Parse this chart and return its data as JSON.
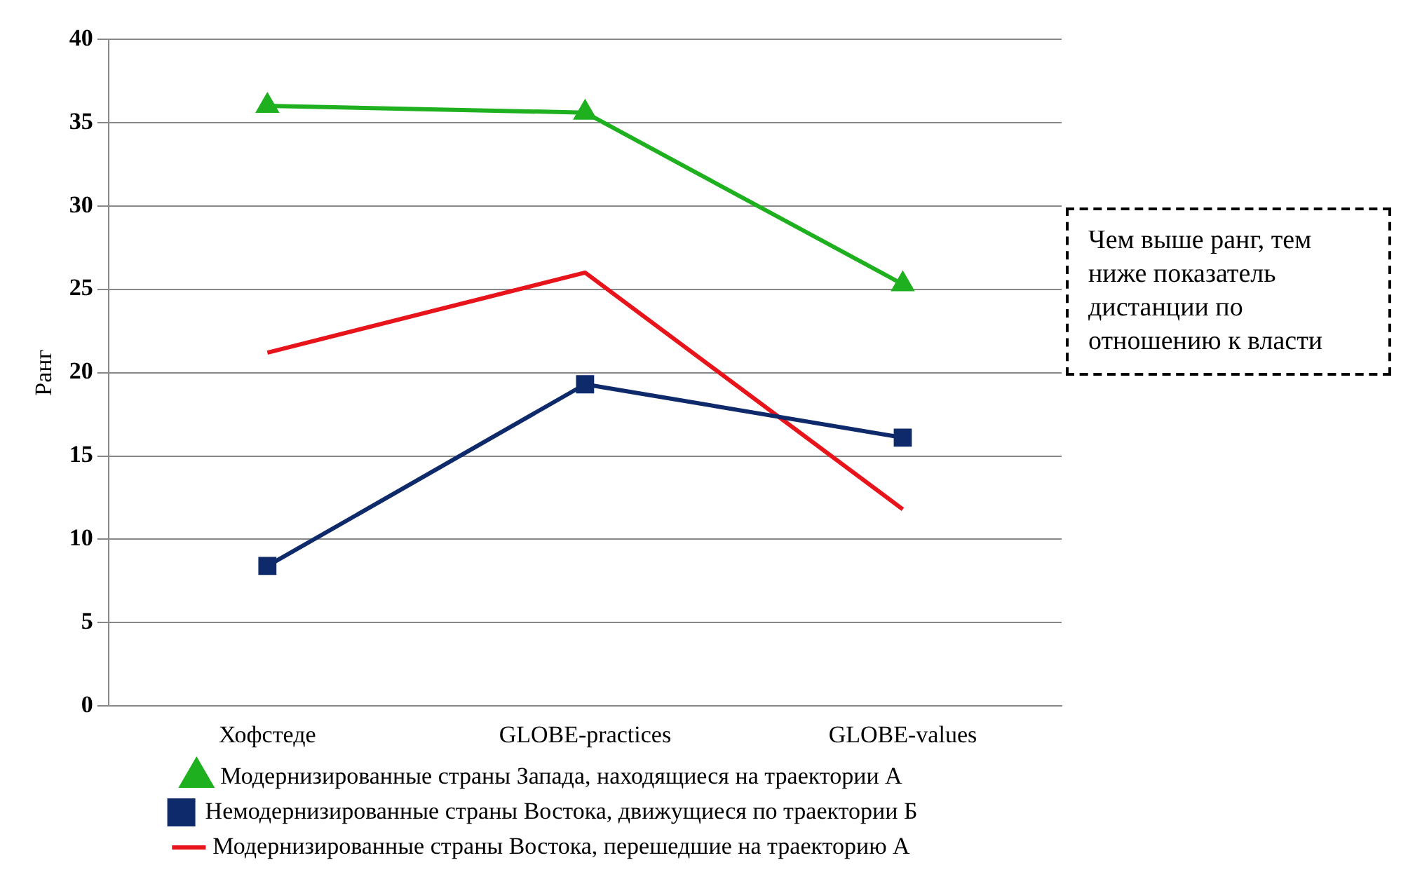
{
  "chart_data": {
    "type": "line",
    "ylabel": "Ранг",
    "categories": [
      "Хофстеде",
      "GLOBE-practices",
      "GLOBE-values"
    ],
    "series": [
      {
        "name": "Модернизированные страны Запада, находящиеся на траектории А",
        "color": "#1eb01e",
        "values": [
          36,
          35.6,
          25.3
        ],
        "marker": "triangle"
      },
      {
        "name": "Немодернизированные страны Востока, движущиеся по траектории Б",
        "color": "#0e2a6b",
        "values": [
          8.4,
          19.3,
          16.1
        ],
        "marker": "square"
      },
      {
        "name": "Модернизированные страны Востока, перешедшие на траекторию А",
        "color": "#e8141c",
        "values": [
          21.2,
          26,
          11.8
        ],
        "marker": "none"
      }
    ],
    "ylim": [
      0,
      40
    ],
    "yticks": [
      0,
      5,
      10,
      15,
      20,
      25,
      30,
      35,
      40
    ],
    "grid": "y",
    "legend": "bottom",
    "line_style": "solid",
    "annotations": [
      "Чем выше ранг, тем ниже показатель дистанции по отношению к власти"
    ]
  }
}
